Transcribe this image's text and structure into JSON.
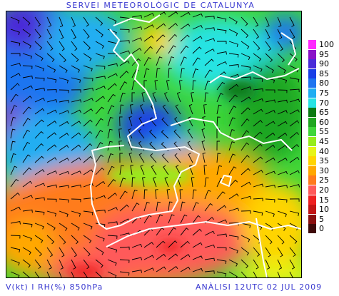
{
  "header": {
    "title": "SERVEI METEOROLÒGIC DE CATALUNYA"
  },
  "footer": {
    "variables": "V(kt) I RH(%) 850hPa",
    "analysis": "ANÀLISI 12UTC 02 JUL 2009"
  },
  "legend": {
    "levels": [
      {
        "label": "100",
        "color": "#ff2aff"
      },
      {
        "label": "95",
        "color": "#8a12c8"
      },
      {
        "label": "90",
        "color": "#4a2bd8"
      },
      {
        "label": "85",
        "color": "#1a3fe6"
      },
      {
        "label": "80",
        "color": "#1e74f0"
      },
      {
        "label": "75",
        "color": "#20aef2"
      },
      {
        "label": "70",
        "color": "#28e3e3"
      },
      {
        "label": "65",
        "color": "#0a7a12"
      },
      {
        "label": "60",
        "color": "#1ea620"
      },
      {
        "label": "55",
        "color": "#3ed63a"
      },
      {
        "label": "45",
        "color": "#96ec1c"
      },
      {
        "label": "40",
        "color": "#e6f418"
      },
      {
        "label": "35",
        "color": "#ffd400"
      },
      {
        "label": "30",
        "color": "#ffa800"
      },
      {
        "label": "25",
        "color": "#ff7b1e"
      },
      {
        "label": "20",
        "color": "#ff5a5a"
      },
      {
        "label": "15",
        "color": "#ee2020"
      },
      {
        "label": "10",
        "color": "#c21515"
      },
      {
        "label": "5",
        "color": "#8a1010"
      },
      {
        "label": "0",
        "color": "#3e0a0a"
      }
    ]
  }
}
